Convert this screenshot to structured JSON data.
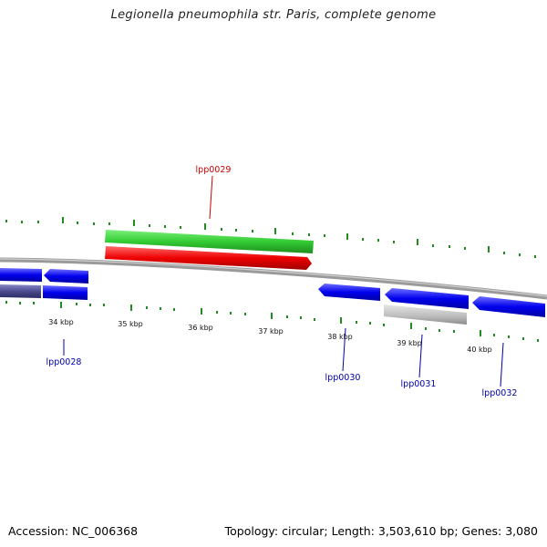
{
  "title": "Legionella pneumophila str. Paris, complete genome",
  "accession": "Accession: NC_006368",
  "summary": "Topology: circular; Length: 3,503,610 bp; Genes: 3,080",
  "colors": {
    "backbone": "#888888",
    "tick": "#228B22",
    "cds_forward": "#0000EE",
    "cds_pseudo": "#4B4B8F",
    "rna_gray": "#BBBBBB",
    "gene_green": "#33CC33",
    "gene_red": "#EE0000",
    "label_blue": "#0000AA",
    "label_red": "#CC0000"
  },
  "kbp_labels": [
    "34 kbp",
    "35 kbp",
    "36 kbp",
    "37 kbp",
    "38 kbp",
    "39 kbp",
    "40 kbp"
  ],
  "gene_labels": {
    "lpp0029": "lpp0029",
    "lpp0028": "lpp0028",
    "lpp0030": "lpp0030",
    "lpp0031": "lpp0031",
    "lpp0032": "lpp0032"
  }
}
